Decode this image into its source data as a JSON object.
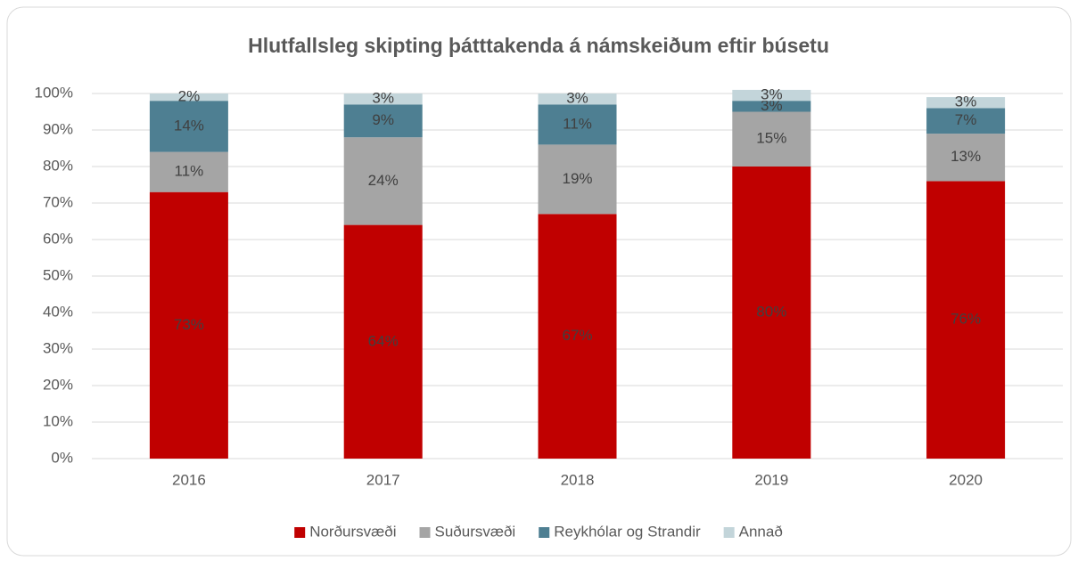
{
  "chart_data": {
    "type": "stacked_bar",
    "title": "Hlutfallsleg skipting þátttakenda á námskeiðum eftir búsetu",
    "categories": [
      "2016",
      "2017",
      "2018",
      "2019",
      "2020"
    ],
    "series": [
      {
        "name": "Norðursvæði",
        "color": "#c00000",
        "values": [
          73,
          64,
          67,
          80,
          76
        ],
        "value_labels": [
          "73%",
          "64%",
          "67%",
          "80%",
          "76%"
        ]
      },
      {
        "name": "Suðursvæði",
        "color": "#a5a5a5",
        "values": [
          11,
          24,
          19,
          15,
          13
        ],
        "value_labels": [
          "11%",
          "24%",
          "19%",
          "15%",
          "13%"
        ]
      },
      {
        "name": "Reykhólar og Strandir",
        "color": "#4e7f92",
        "values": [
          14,
          9,
          11,
          3,
          7
        ],
        "value_labels": [
          "14%",
          "9%",
          "11%",
          "3%",
          "7%"
        ]
      },
      {
        "name": "Annað",
        "color": "#c3d5da",
        "values": [
          2,
          3,
          3,
          3,
          3
        ],
        "value_labels": [
          "2%",
          "3%",
          "3%",
          "3%",
          "3%"
        ]
      }
    ],
    "ylim": [
      0,
      100
    ],
    "yticks": [
      {
        "value": 0,
        "label": "0%"
      },
      {
        "value": 10,
        "label": "10%"
      },
      {
        "value": 20,
        "label": "20%"
      },
      {
        "value": 30,
        "label": "30%"
      },
      {
        "value": 40,
        "label": "40%"
      },
      {
        "value": 50,
        "label": "50%"
      },
      {
        "value": 60,
        "label": "60%"
      },
      {
        "value": 70,
        "label": "70%"
      },
      {
        "value": 80,
        "label": "80%"
      },
      {
        "value": 90,
        "label": "90%"
      },
      {
        "value": 100,
        "label": "100%"
      }
    ],
    "grid": true,
    "legend": "bottom"
  }
}
